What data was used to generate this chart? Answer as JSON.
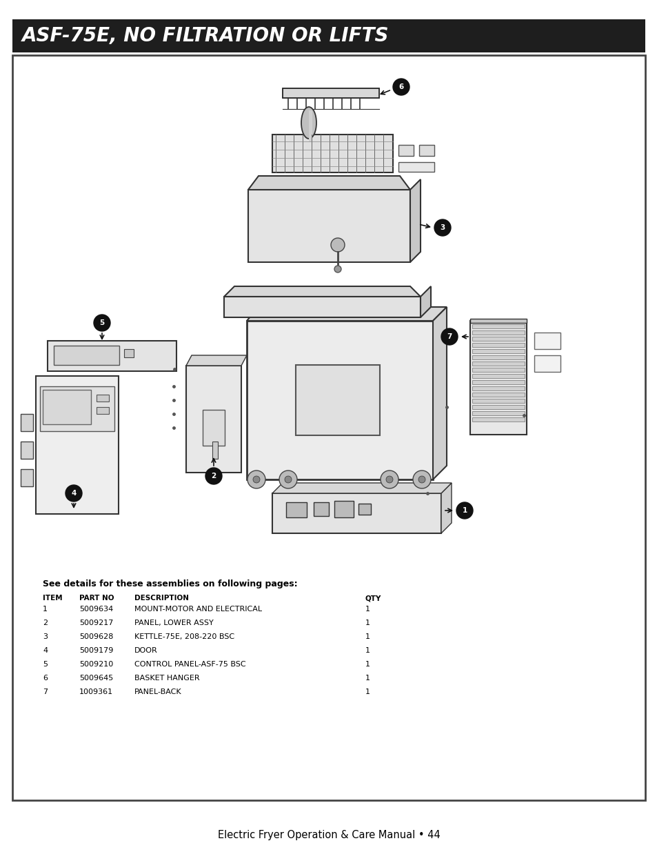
{
  "page_bg": "#ffffff",
  "header_bg": "#1e1e1e",
  "header_text": "ASF-75E, NO FILTRATION OR LIFTS",
  "header_text_color": "#ffffff",
  "header_font_size": 20,
  "border_color": "#444444",
  "footer_text": "Electric Fryer Operation & Care Manual • 44",
  "see_details_text": "See details for these assemblies on following pages:",
  "table_headers": [
    "ITEM",
    "PART NO",
    "DESCRIPTION",
    "QTY"
  ],
  "table_data": [
    [
      "1",
      "5009634",
      "MOUNT-MOTOR AND ELECTRICAL",
      "1"
    ],
    [
      "2",
      "5009217",
      "PANEL, LOWER ASSY",
      "1"
    ],
    [
      "3",
      "5009628",
      "KETTLE-75E, 208-220 BSC",
      "1"
    ],
    [
      "4",
      "5009179",
      "DOOR",
      "1"
    ],
    [
      "5",
      "5009210",
      "CONTROL PANEL-ASF-75 BSC",
      "1"
    ],
    [
      "6",
      "5009645",
      "BASKET HANGER",
      "1"
    ],
    [
      "7",
      "1009361",
      "PANEL-BACK",
      "1"
    ]
  ]
}
